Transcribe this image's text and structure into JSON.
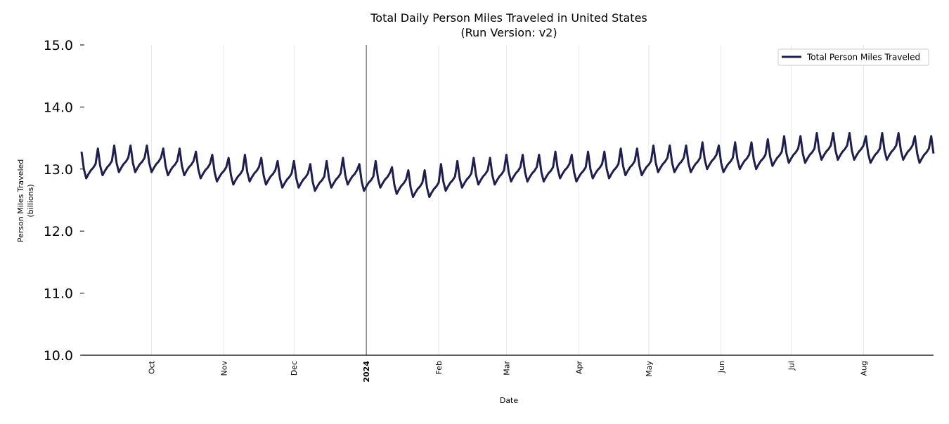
{
  "chart_data": {
    "type": "line",
    "title": "Total Daily Person Miles Traveled in United States",
    "subtitle": "(Run Version: v2)",
    "xlabel": "Date",
    "ylabel": "Person Miles Traveled",
    "ylabel_unit": "(billions)",
    "xlim": [
      "2023-09-01",
      "2024-08-31"
    ],
    "x_frequency": "daily",
    "ylim": [
      10.0,
      15.0
    ],
    "yticks": [
      "10.0",
      "11.0",
      "12.0",
      "13.0",
      "14.0",
      "15.0"
    ],
    "xticks": [
      {
        "date": "2023-10-01",
        "label": "Oct",
        "bold": false
      },
      {
        "date": "2023-11-01",
        "label": "Nov",
        "bold": false
      },
      {
        "date": "2023-12-01",
        "label": "Dec",
        "bold": false
      },
      {
        "date": "2024-01-01",
        "label": "2024",
        "bold": true
      },
      {
        "date": "2024-02-01",
        "label": "Feb",
        "bold": false
      },
      {
        "date": "2024-03-01",
        "label": "Mar",
        "bold": false
      },
      {
        "date": "2024-04-01",
        "label": "Apr",
        "bold": false
      },
      {
        "date": "2024-05-01",
        "label": "May",
        "bold": false
      },
      {
        "date": "2024-06-01",
        "label": "Jun",
        "bold": false
      },
      {
        "date": "2024-07-01",
        "label": "Jul",
        "bold": false
      },
      {
        "date": "2024-08-01",
        "label": "Aug",
        "bold": false
      }
    ],
    "grid": "vertical",
    "year_marker": "2024-01-01",
    "legend_position": "top-right",
    "series": [
      {
        "name": "Total Person Miles Traveled",
        "color": "#1f1f4f",
        "values": [
          13.28,
          13.0,
          12.85,
          12.92,
          12.98,
          13.02,
          13.08,
          13.33,
          13.05,
          12.9,
          12.97,
          13.03,
          13.07,
          13.13,
          13.38,
          13.1,
          12.95,
          13.02,
          13.08,
          13.12,
          13.18,
          13.38,
          13.1,
          12.95,
          13.02,
          13.08,
          13.12,
          13.18,
          13.38,
          13.1,
          12.95,
          13.02,
          13.08,
          13.12,
          13.18,
          13.33,
          13.05,
          12.9,
          12.97,
          13.03,
          13.07,
          13.13,
          13.33,
          13.05,
          12.9,
          12.97,
          13.03,
          13.07,
          13.13,
          13.28,
          13.0,
          12.85,
          12.92,
          12.98,
          13.02,
          13.08,
          13.23,
          12.95,
          12.8,
          12.87,
          12.93,
          12.97,
          13.03,
          13.18,
          12.9,
          12.75,
          12.82,
          12.88,
          12.92,
          12.98,
          13.23,
          12.95,
          12.8,
          12.87,
          12.93,
          12.97,
          13.03,
          13.18,
          12.9,
          12.75,
          12.82,
          12.88,
          12.92,
          12.98,
          13.13,
          12.85,
          12.7,
          12.77,
          12.83,
          12.87,
          12.93,
          13.13,
          12.85,
          12.7,
          12.77,
          12.83,
          12.87,
          12.93,
          13.08,
          12.8,
          12.65,
          12.72,
          12.78,
          12.82,
          12.88,
          13.13,
          12.85,
          12.7,
          12.77,
          12.83,
          12.87,
          12.93,
          13.18,
          12.9,
          12.75,
          12.82,
          12.88,
          12.92,
          12.98,
          13.08,
          12.8,
          12.65,
          12.72,
          12.78,
          12.82,
          12.88,
          13.13,
          12.85,
          12.7,
          12.77,
          12.83,
          12.87,
          12.93,
          13.03,
          12.75,
          12.6,
          12.67,
          12.73,
          12.77,
          12.83,
          12.98,
          12.7,
          12.55,
          12.62,
          12.68,
          12.72,
          12.78,
          12.98,
          12.7,
          12.55,
          12.62,
          12.68,
          12.72,
          12.78,
          13.08,
          12.8,
          12.65,
          12.72,
          12.78,
          12.82,
          12.88,
          13.13,
          12.85,
          12.7,
          12.77,
          12.83,
          12.87,
          12.93,
          13.18,
          12.9,
          12.75,
          12.82,
          12.88,
          12.92,
          12.98,
          13.18,
          12.9,
          12.75,
          12.82,
          12.88,
          12.92,
          12.98,
          13.23,
          12.95,
          12.8,
          12.87,
          12.93,
          12.97,
          13.03,
          13.23,
          12.95,
          12.8,
          12.87,
          12.93,
          12.97,
          13.03,
          13.23,
          12.95,
          12.8,
          12.87,
          12.93,
          12.97,
          13.03,
          13.28,
          13.0,
          12.85,
          12.92,
          12.98,
          13.02,
          13.08,
          13.23,
          12.95,
          12.8,
          12.87,
          12.93,
          12.97,
          13.03,
          13.28,
          13.0,
          12.85,
          12.92,
          12.98,
          13.02,
          13.08,
          13.28,
          13.0,
          12.85,
          12.92,
          12.98,
          13.02,
          13.08,
          13.33,
          13.05,
          12.9,
          12.97,
          13.03,
          13.07,
          13.13,
          13.33,
          13.05,
          12.9,
          12.97,
          13.03,
          13.07,
          13.13,
          13.38,
          13.1,
          12.95,
          13.02,
          13.08,
          13.12,
          13.18,
          13.38,
          13.1,
          12.95,
          13.02,
          13.08,
          13.12,
          13.18,
          13.38,
          13.1,
          12.95,
          13.02,
          13.08,
          13.12,
          13.18,
          13.43,
          13.15,
          13.0,
          13.07,
          13.13,
          13.17,
          13.23,
          13.38,
          13.1,
          12.95,
          13.02,
          13.08,
          13.12,
          13.18,
          13.43,
          13.15,
          13.0,
          13.07,
          13.13,
          13.17,
          13.23,
          13.43,
          13.15,
          13.0,
          13.07,
          13.13,
          13.17,
          13.23,
          13.48,
          13.2,
          13.05,
          13.12,
          13.18,
          13.22,
          13.28,
          13.53,
          13.25,
          13.1,
          13.17,
          13.23,
          13.27,
          13.33,
          13.53,
          13.25,
          13.1,
          13.17,
          13.23,
          13.27,
          13.33,
          13.58,
          13.3,
          13.15,
          13.22,
          13.28,
          13.32,
          13.38,
          13.58,
          13.3,
          13.15,
          13.22,
          13.28,
          13.32,
          13.38,
          13.58,
          13.3,
          13.15,
          13.22,
          13.28,
          13.32,
          13.38,
          13.53,
          13.25,
          13.1,
          13.17,
          13.23,
          13.27,
          13.33,
          13.58,
          13.3,
          13.15,
          13.22,
          13.28,
          13.32,
          13.38,
          13.58,
          13.3,
          13.15,
          13.22,
          13.28,
          13.32,
          13.38,
          13.53,
          13.25,
          13.1,
          13.17,
          13.23,
          13.27,
          13.33,
          13.53,
          13.25
        ]
      }
    ]
  }
}
